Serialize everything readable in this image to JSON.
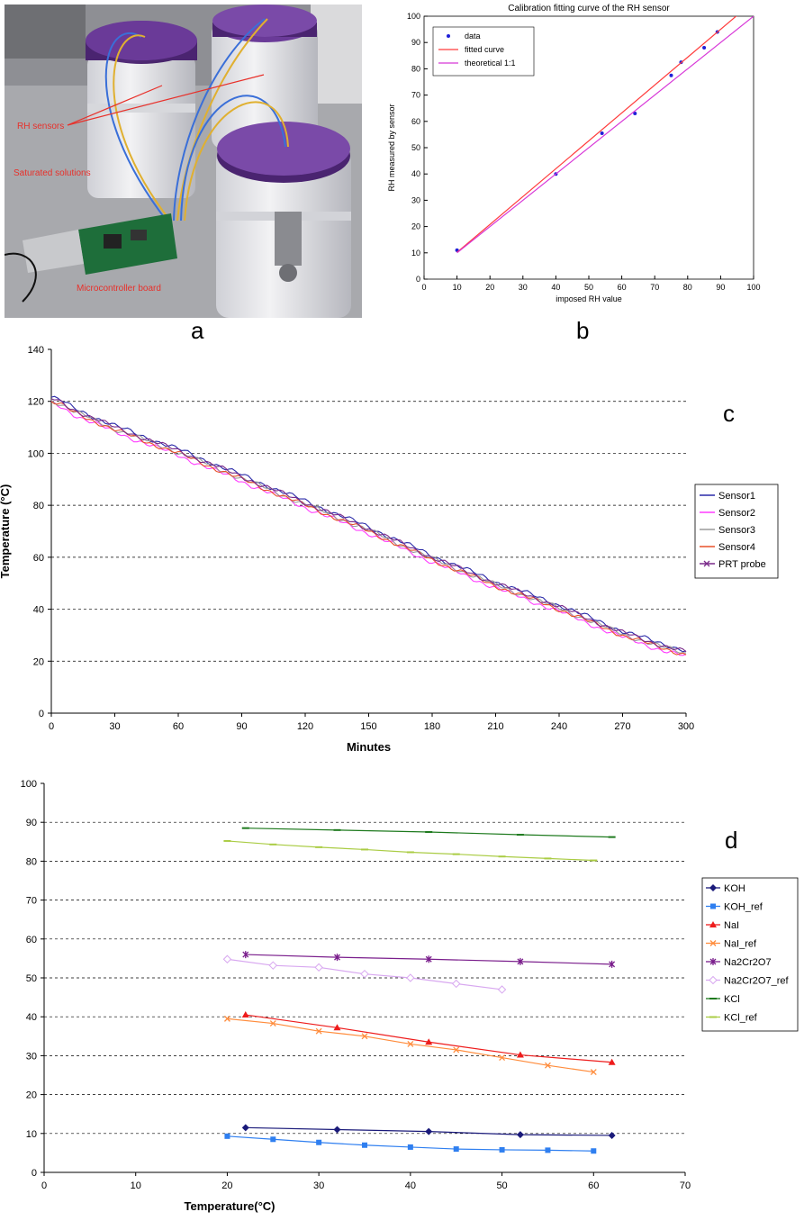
{
  "panel_labels": {
    "a": "a",
    "b": "b",
    "c": "c",
    "d": "d"
  },
  "photo": {
    "annotations": {
      "rh_sensors": "RH sensors",
      "saturated_solutions": "Saturated solutions",
      "microcontroller": "Microcontroller board"
    },
    "colors": {
      "lid": "#5a2d82",
      "annotation": "#e8302a",
      "board": "#1e6e3a",
      "jar": "#e6e6e9",
      "bench": "#b9b9bd"
    }
  },
  "chart_data": [
    {
      "id": "b",
      "type": "line",
      "title": "Calibration fitting curve of the RH sensor",
      "xlabel": "imposed RH value",
      "ylabel": "RH measured by sensor",
      "xlim": [
        0,
        100
      ],
      "ylim": [
        0,
        100
      ],
      "xticks": [
        0,
        10,
        20,
        30,
        40,
        50,
        60,
        70,
        80,
        90,
        100
      ],
      "yticks": [
        0,
        10,
        20,
        30,
        40,
        50,
        60,
        70,
        80,
        90,
        100
      ],
      "grid": false,
      "legend": "top-left",
      "series": [
        {
          "name": "data",
          "kind": "scatter",
          "color": "#1f1fd8",
          "x": [
            10,
            40,
            54,
            64,
            75,
            78,
            85,
            89,
            98
          ],
          "y": [
            11,
            40,
            55.5,
            63,
            77.5,
            82.5,
            88,
            94,
            103.5
          ]
        },
        {
          "name": "fitted curve",
          "kind": "line",
          "color": "#ff3b3b",
          "x": [
            10,
            98
          ],
          "y": [
            10.2,
            103.5
          ]
        },
        {
          "name": "theoretical 1:1",
          "kind": "line",
          "color": "#d838d8",
          "x": [
            10,
            100
          ],
          "y": [
            10,
            100
          ]
        }
      ]
    },
    {
      "id": "c",
      "type": "line",
      "title": "",
      "xlabel": "Minutes",
      "ylabel": "Temperature (°C)",
      "xlim": [
        0,
        300
      ],
      "ylim": [
        0,
        140
      ],
      "xticks": [
        0,
        30,
        60,
        90,
        120,
        150,
        180,
        210,
        240,
        270,
        300
      ],
      "yticks": [
        0,
        20,
        40,
        60,
        80,
        100,
        120,
        140
      ],
      "grid": "horizontal dashed",
      "legend": "right",
      "series": [
        {
          "name": "Sensor1",
          "color": "#2a2aa8",
          "offset": 0.6
        },
        {
          "name": "Sensor2",
          "color": "#ff3cff",
          "offset": -1.8
        },
        {
          "name": "Sensor3",
          "color": "#9a9a9a",
          "offset": -0.6
        },
        {
          "name": "Sensor4",
          "color": "#e8502a",
          "offset": -1.0
        },
        {
          "name": "PRT probe",
          "color": "#7a2a8a",
          "offset": 0.0,
          "marker": "x"
        }
      ],
      "base_curve": {
        "x": [
          0,
          5,
          10,
          30,
          60,
          90,
          120,
          150,
          180,
          210,
          240,
          270,
          285,
          300
        ],
        "y": [
          121,
          119.5,
          117,
          110,
          101,
          91,
          81,
          71,
          60,
          50,
          41,
          31,
          27,
          23.5
        ]
      }
    },
    {
      "id": "d",
      "type": "line",
      "title": "",
      "xlabel": "Temperature(°C)",
      "ylabel": "",
      "xlim": [
        0,
        70
      ],
      "ylim": [
        0,
        100
      ],
      "xticks": [
        0,
        10,
        20,
        30,
        40,
        50,
        60,
        70
      ],
      "yticks": [
        0,
        10,
        20,
        30,
        40,
        50,
        60,
        70,
        80,
        90,
        100
      ],
      "grid": "horizontal dashed",
      "legend": "right",
      "series": [
        {
          "name": "KOH",
          "color": "#1a1a7a",
          "marker": "diamond",
          "x": [
            22,
            32,
            42,
            52,
            62
          ],
          "y": [
            11.5,
            11.0,
            10.5,
            9.7,
            9.5
          ]
        },
        {
          "name": "KOH_ref",
          "color": "#2f7ff0",
          "marker": "square",
          "x": [
            20,
            25,
            30,
            35,
            40,
            45,
            50,
            55,
            60
          ],
          "y": [
            9.3,
            8.5,
            7.7,
            7.0,
            6.5,
            6.0,
            5.8,
            5.7,
            5.5
          ]
        },
        {
          "name": "NaI",
          "color": "#ee1c1c",
          "marker": "triangle",
          "x": [
            22,
            32,
            42,
            52,
            62
          ],
          "y": [
            40.5,
            37.2,
            33.5,
            30.2,
            28.3
          ]
        },
        {
          "name": "NaI_ref",
          "color": "#ff8c3c",
          "marker": "x",
          "x": [
            20,
            25,
            30,
            35,
            40,
            45,
            50,
            55,
            60
          ],
          "y": [
            39.5,
            38.3,
            36.3,
            35.0,
            33.0,
            31.5,
            29.5,
            27.5,
            25.8
          ]
        },
        {
          "name": "Na2Cr2O7",
          "color": "#7a1e8c",
          "marker": "star",
          "x": [
            22,
            32,
            42,
            52,
            62
          ],
          "y": [
            56.0,
            55.3,
            54.8,
            54.2,
            53.5
          ]
        },
        {
          "name": "Na2Cr2O7_ref",
          "color": "#d8a8f0",
          "marker": "diamond-open",
          "x": [
            20,
            25,
            30,
            35,
            40,
            45,
            50
          ],
          "y": [
            54.8,
            53.2,
            52.7,
            51.0,
            50.0,
            48.5,
            47.0
          ]
        },
        {
          "name": "KCl",
          "color": "#1e7a1e",
          "marker": "dash",
          "x": [
            22,
            32,
            42,
            52,
            62
          ],
          "y": [
            88.5,
            88.0,
            87.5,
            86.8,
            86.2
          ]
        },
        {
          "name": "KCl_ref",
          "color": "#aacc44",
          "marker": "dash",
          "x": [
            20,
            25,
            30,
            35,
            40,
            45,
            50,
            55,
            60
          ],
          "y": [
            85.2,
            84.3,
            83.6,
            83.0,
            82.3,
            81.8,
            81.2,
            80.7,
            80.2
          ]
        }
      ],
      "legend_labels": [
        "KOH",
        "KOH_ref",
        "NaI",
        "NaI_ref",
        "Na2Cr2O7",
        "Na2Cr2O7_ref",
        "KCl",
        "KCl_ref"
      ]
    }
  ]
}
